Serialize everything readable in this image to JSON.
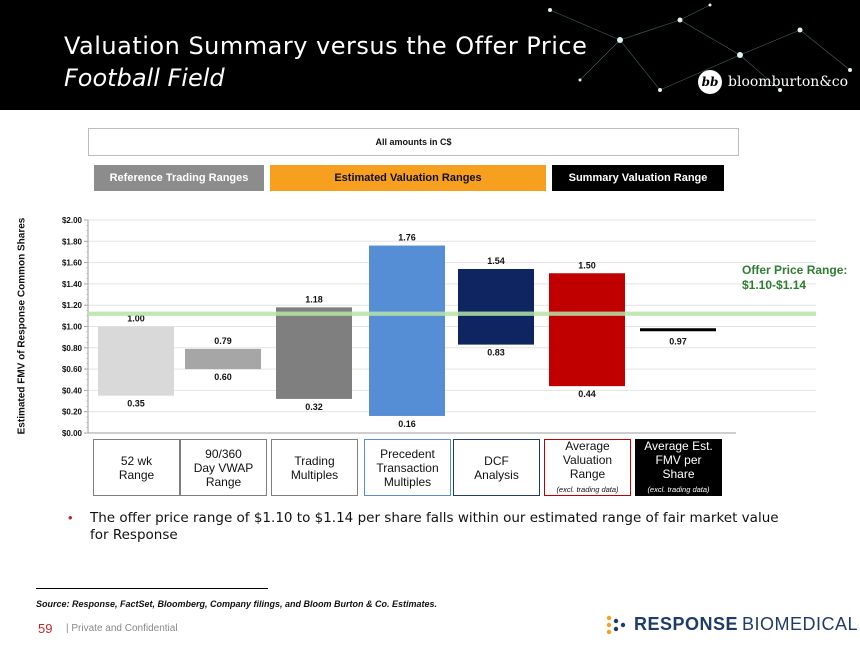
{
  "header": {
    "title": "Valuation Summary versus the Offer Price",
    "subtitle": "Football Field",
    "logo_mark": "bb",
    "logo_text": "bloomburton&co"
  },
  "amounts_note": "All amounts in C$",
  "legend": {
    "reference": "Reference Trading Ranges",
    "estimated": "Estimated Valuation Ranges",
    "summary": "Summary Valuation Range"
  },
  "offer_label": "Offer Price Range: $1.10-$1.14",
  "categories": [
    {
      "lines": [
        "52 wk",
        "Range"
      ],
      "note": ""
    },
    {
      "lines": [
        "90/360",
        "Day VWAP",
        "Range"
      ],
      "note": ""
    },
    {
      "lines": [
        "Trading",
        "Multiples"
      ],
      "note": ""
    },
    {
      "lines": [
        "Precedent",
        "Transaction",
        "Multiples"
      ],
      "note": ""
    },
    {
      "lines": [
        "DCF",
        "Analysis"
      ],
      "note": ""
    },
    {
      "lines": [
        "Average",
        "Valuation",
        "Range"
      ],
      "note": "(excl. trading data)"
    },
    {
      "lines": [
        "Average Est.",
        "FMV per",
        "Share"
      ],
      "note": "(excl. trading data)"
    }
  ],
  "chart_data": {
    "type": "bar",
    "subtype": "floating-range",
    "ylabel": "Estimated FMV of Response Common Shares",
    "ylim": [
      0,
      2.0
    ],
    "yticks": [
      0.0,
      0.2,
      0.4,
      0.6,
      0.8,
      1.0,
      1.2,
      1.4,
      1.6,
      1.8,
      2.0
    ],
    "ytick_labels": [
      "$0.00",
      "$0.20",
      "$0.40",
      "$0.60",
      "$0.80",
      "$1.00",
      "$1.20",
      "$1.40",
      "$1.60",
      "$1.80",
      "$2.00"
    ],
    "categories": [
      "52 wk Range",
      "90/360 Day VWAP Range",
      "Trading Multiples",
      "Precedent Transaction Multiples",
      "DCF Analysis",
      "Average Valuation Range",
      "Average Est. FMV per Share"
    ],
    "series": [
      {
        "low": 0.35,
        "high": 1.0,
        "low_label": "0.35",
        "high_label": "1.00",
        "color": "#d9d9d9",
        "group": "reference"
      },
      {
        "low": 0.6,
        "high": 0.79,
        "low_label": "0.60",
        "high_label": "0.79",
        "color": "#a6a6a6",
        "group": "reference"
      },
      {
        "low": 0.32,
        "high": 1.18,
        "low_label": "0.32",
        "high_label": "1.18",
        "color": "#7f7f7f",
        "group": "reference"
      },
      {
        "low": 0.16,
        "high": 1.76,
        "low_label": "0.16",
        "high_label": "1.76",
        "color": "#558ed5",
        "group": "estimated"
      },
      {
        "low": 0.83,
        "high": 1.54,
        "low_label": "0.83",
        "high_label": "1.54",
        "color": "#0f2561",
        "group": "estimated"
      },
      {
        "low": 0.44,
        "high": 1.5,
        "low_label": "0.44",
        "high_label": "1.50",
        "color": "#c00000",
        "group": "estimated"
      },
      {
        "value": 0.97,
        "label": "0.97",
        "color": "#000000",
        "group": "summary"
      }
    ],
    "offer_range": {
      "low": 1.1,
      "high": 1.14,
      "color": "#b6e3a8"
    },
    "grid": true,
    "legend_position": "top"
  },
  "bullet": "The offer price range of $1.10 to $1.14 per share falls within our estimated range of fair market value for Response",
  "footnote": "Source: Response, FactSet, Bloomberg, Company filings, and Bloom Burton & Co. Estimates.",
  "footer": {
    "page": "59",
    "confidential": "|  Private and Confidential",
    "logo_word1": "RESPONSE",
    "logo_word2": "BIOMEDICAL"
  },
  "colors": {
    "cat_borders": [
      "#7f7f7f",
      "#7f7f7f",
      "#7f7f7f",
      "#558ed5",
      "#1f3b6b",
      "#c00000",
      "#000000"
    ]
  }
}
